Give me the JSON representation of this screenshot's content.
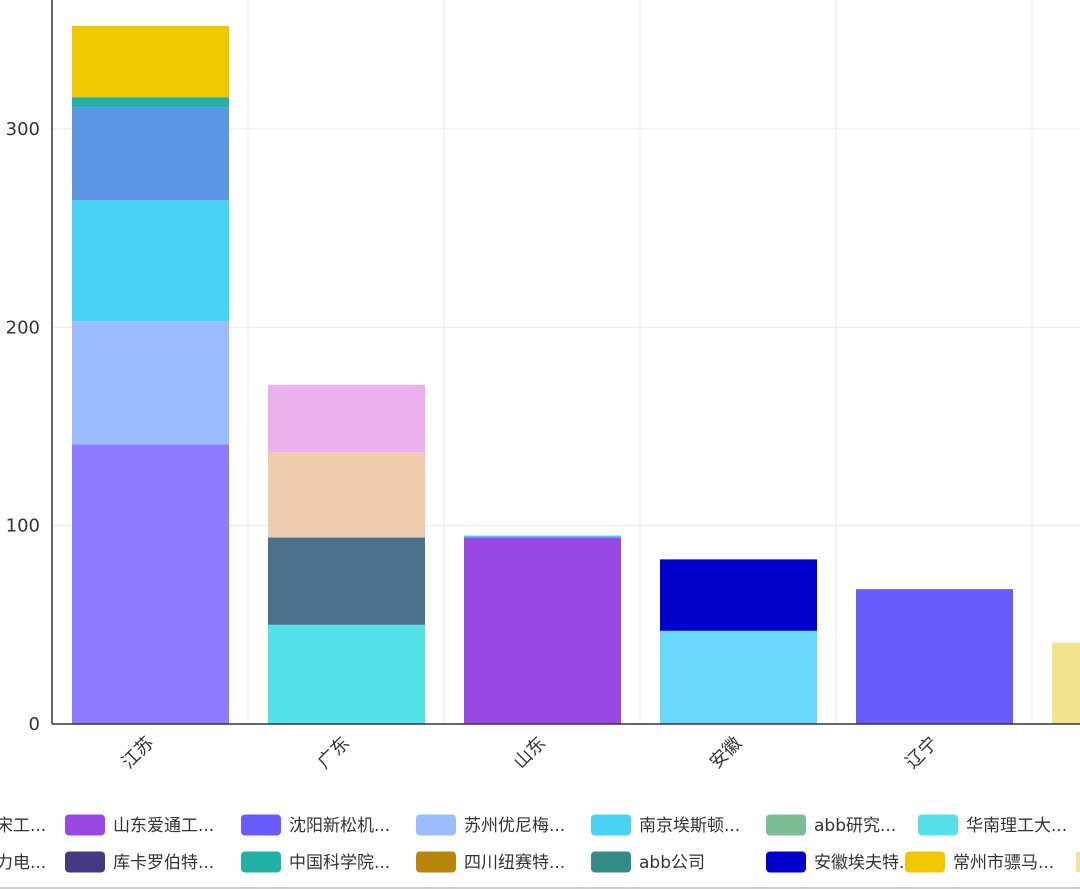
{
  "chart_data": {
    "type": "bar",
    "stacked": true,
    "categories": [
      "江苏",
      "广东",
      "山东",
      "安徽",
      "辽宁",
      ""
    ],
    "ylim": [
      0,
      365
    ],
    "y_ticks": [
      0,
      100,
      200,
      300
    ],
    "grid": true,
    "legend_position": "bottom",
    "segments": [
      {
        "category": "江苏",
        "value": 141,
        "color": "#8d7bfd"
      },
      {
        "category": "江苏",
        "value": 62,
        "color": "#9bbcfd"
      },
      {
        "category": "江苏",
        "value": 61,
        "color": "#48d3f5"
      },
      {
        "category": "江苏",
        "value": 47,
        "color": "#5a96e4"
      },
      {
        "category": "江苏",
        "value": 5,
        "color": "#22b1a4"
      },
      {
        "category": "江苏",
        "value": 36,
        "color": "#efc800"
      },
      {
        "category": "广东",
        "value": 50,
        "color": "#54e1e8"
      },
      {
        "category": "广东",
        "value": 44,
        "color": "#4d708c"
      },
      {
        "category": "广东",
        "value": 43,
        "color": "#efcbae"
      },
      {
        "category": "广东",
        "value": 34,
        "color": "#ecb0ee"
      },
      {
        "category": "山东",
        "value": 94,
        "color": "#9a48e4"
      },
      {
        "category": "山东",
        "value": 1,
        "color": "#48d3f5"
      },
      {
        "category": "安徽",
        "value": 47,
        "color": "#6ad8fc"
      },
      {
        "category": "安徽",
        "value": 36,
        "color": "#0000cd"
      },
      {
        "category": "辽宁",
        "value": 68,
        "color": "#695bfd"
      },
      {
        "category": "",
        "value": 41,
        "color": "#f0e48c"
      }
    ],
    "legend": [
      {
        "label": "宋工...",
        "color": "#c0c0c0"
      },
      {
        "label": "山东爱通工...",
        "color": "#9a48e4"
      },
      {
        "label": "沈阳新松机...",
        "color": "#695bfd"
      },
      {
        "label": "苏州优尼梅...",
        "color": "#9bbcfd"
      },
      {
        "label": "南京埃斯顿...",
        "color": "#48d3f5"
      },
      {
        "label": "abb研究...",
        "color": "#7bbd94"
      },
      {
        "label": "华南理工大...",
        "color": "#54e1e8"
      },
      {
        "label": "力电...",
        "color": "#c0c0c0"
      },
      {
        "label": "库卡罗伯特...",
        "color": "#473883"
      },
      {
        "label": "中国科学院...",
        "color": "#22b1a4"
      },
      {
        "label": "四川纽赛特...",
        "color": "#b8860b"
      },
      {
        "label": "abb公司",
        "color": "#358b87"
      },
      {
        "label": "安徽埃夫特...",
        "color": "#0000cd"
      },
      {
        "label": "常州市骠马...",
        "color": "#efc800"
      }
    ]
  }
}
